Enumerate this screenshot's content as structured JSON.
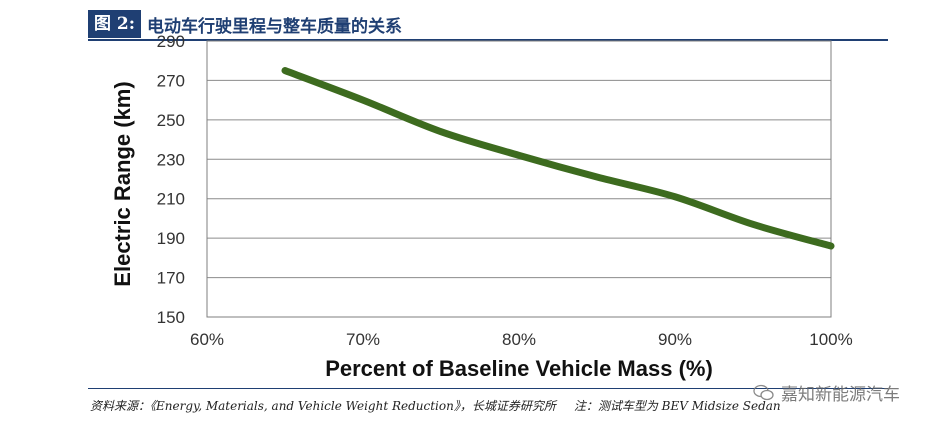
{
  "figure": {
    "tag": "图 2:",
    "title": "电动车行驶里程与整车质量的关系"
  },
  "source_text": "资料来源：《Energy, Materials, and Vehicle Weight Reduction》，长城证券研究所",
  "note_text": "注：测试车型为 BEV Midsize Sedan",
  "watermark_text": "嘉知新能源汽车",
  "chart_data": {
    "type": "line",
    "xlabel": "Percent of Baseline Vehicle Mass (%)",
    "ylabel": "Electric Range (km)",
    "xlim": [
      60,
      100
    ],
    "ylim": [
      150,
      290
    ],
    "x_ticks": [
      60,
      70,
      80,
      90,
      100
    ],
    "x_tick_labels": [
      "60%",
      "70%",
      "80%",
      "90%",
      "100%"
    ],
    "y_ticks": [
      150,
      170,
      190,
      210,
      230,
      250,
      270,
      290
    ],
    "y_tick_labels": [
      "150",
      "170",
      "190",
      "210",
      "230",
      "250",
      "270",
      "290"
    ],
    "grid": true,
    "line_color": "#3d6b1f",
    "series": [
      {
        "x": [
          65,
          70,
          75,
          80,
          85,
          90,
          95,
          100
        ],
        "values": [
          275,
          260,
          244,
          232,
          221,
          211,
          197,
          186
        ]
      }
    ]
  }
}
